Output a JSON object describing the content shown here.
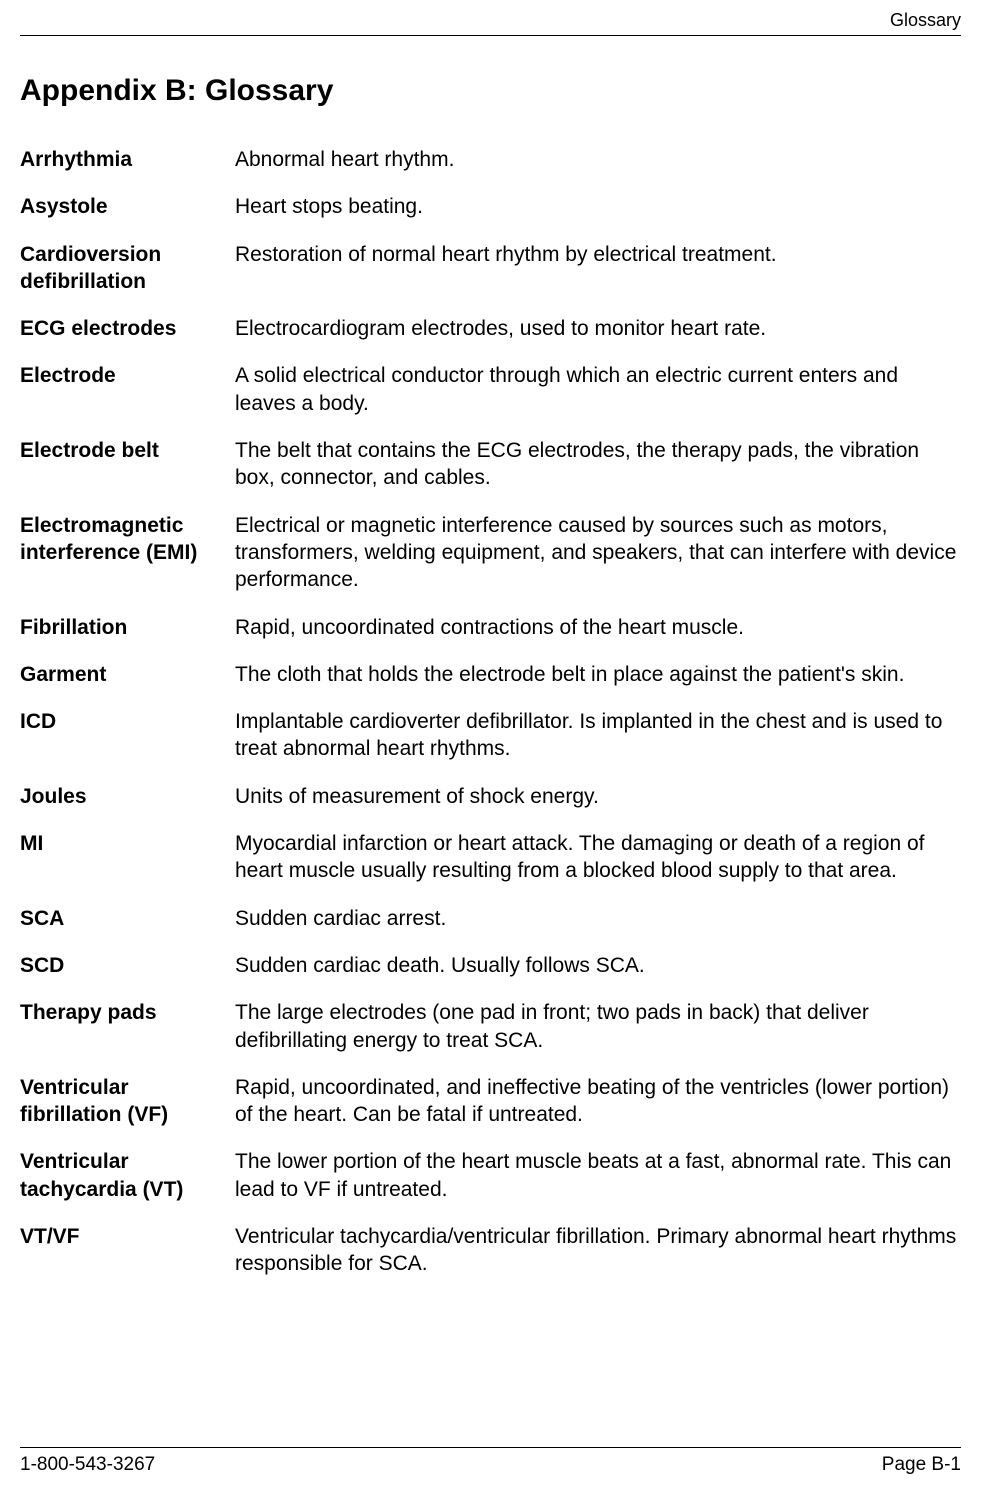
{
  "header": {
    "section_label": "Glossary"
  },
  "title": "Appendix B:   Glossary",
  "entries": [
    {
      "term": "Arrhythmia",
      "definition": "Abnormal heart rhythm."
    },
    {
      "term": "Asystole",
      "definition": "Heart stops beating."
    },
    {
      "term": "Cardioversion defibrillation",
      "definition": "Restoration of normal heart rhythm by electrical treatment."
    },
    {
      "term": "ECG electrodes",
      "definition": "Electrocardiogram electrodes, used to monitor heart rate."
    },
    {
      "term": "Electrode",
      "definition": "A solid electrical conductor through which an electric current enters and leaves a body."
    },
    {
      "term": "Electrode belt",
      "definition": "The belt that contains the ECG electrodes, the therapy pads, the vibration box, connector, and cables."
    },
    {
      "term": "Electromagnetic interference (EMI)",
      "definition": "Electrical or magnetic interference caused by sources such as motors, transformers, welding equipment, and speakers, that can interfere with device performance."
    },
    {
      "term": "Fibrillation",
      "definition": "Rapid, uncoordinated contractions of the heart muscle."
    },
    {
      "term": "Garment",
      "definition": "The cloth that holds the electrode belt in place against the patient's skin."
    },
    {
      "term": "ICD",
      "definition": "Implantable cardioverter defibrillator. Is implanted in the chest and is used to treat abnormal heart rhythms."
    },
    {
      "term": "Joules",
      "definition": "Units of measurement of shock energy."
    },
    {
      "term": "MI",
      "definition": "Myocardial infarction or heart attack. The damaging or death of a region of heart muscle usually resulting from a blocked blood supply to that area."
    },
    {
      "term": "SCA",
      "definition": "Sudden cardiac arrest."
    },
    {
      "term": "SCD",
      "definition": "Sudden cardiac death. Usually follows SCA."
    },
    {
      "term": "Therapy pads",
      "definition": "The large electrodes (one pad in front; two pads in back) that deliver defibrillating energy to treat SCA."
    },
    {
      "term": "Ventricular fibrillation (VF)",
      "definition": "Rapid, uncoordinated, and ineffective beating of the ventricles (lower portion) of the heart. Can be fatal if untreated."
    },
    {
      "term": "Ventricular tachycardia (VT)",
      "definition": "The lower portion of the heart muscle beats at a fast, abnormal rate. This can lead to VF if untreated."
    },
    {
      "term": "VT/VF",
      "definition": "Ventricular tachycardia/ventricular fibrillation. Primary abnormal heart rhythms responsible for SCA."
    }
  ],
  "footer": {
    "phone": "1-800-543-3267",
    "page_label": "Page B-1"
  }
}
